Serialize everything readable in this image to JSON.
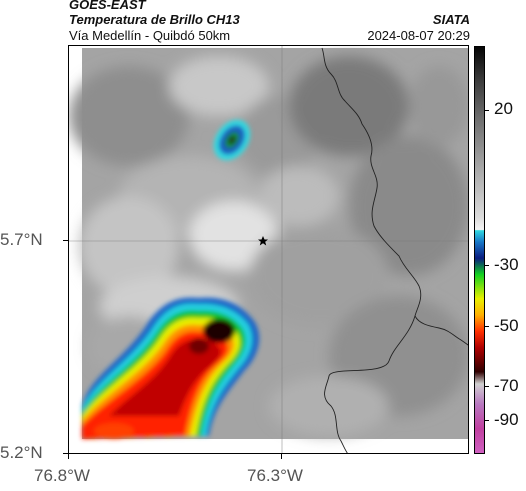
{
  "header": {
    "title_line1": "GOES-EAST",
    "title_line2": "Temperatura de Brillo CH13",
    "subtitle": "Vía Medellín - Quibdó 50km",
    "brand": "SIATA",
    "datetime": "2024-08-07 20:29"
  },
  "axes": {
    "y_ticks": [
      "5.7°N",
      "5.2°N"
    ],
    "x_ticks": [
      "76.8°W",
      "76.3°W"
    ]
  },
  "colorbar": {
    "labels": [
      "20",
      "-30",
      "-50",
      "-70",
      "-90"
    ],
    "colors": {
      "cold_top": "#050505",
      "cyan": "#30d8e0",
      "blue": "#0a1c80",
      "green": "#10d020",
      "yellow": "#e8f000",
      "red": "#ff3000",
      "dark_red": "#300000",
      "magenta": "#c040a0"
    }
  },
  "map": {
    "marker_icon": "star-icon",
    "features": [
      "grayscale-cloud-field",
      "convective-storm-cell",
      "small-cloud-cell",
      "border-lines",
      "gridlines"
    ]
  }
}
